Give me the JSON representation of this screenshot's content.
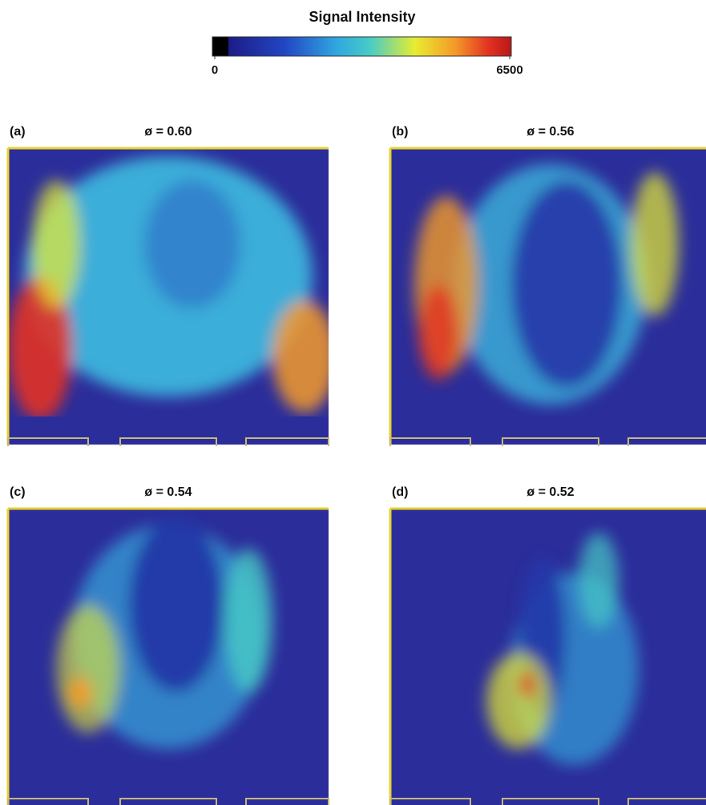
{
  "colorbar": {
    "title": "Signal Intensity",
    "lim": [
      0,
      6500
    ],
    "ticks": [
      0,
      6500
    ]
  },
  "panels": [
    {
      "label": "(a)",
      "title": "ø = 0.60"
    },
    {
      "label": "(b)",
      "title": "ø = 0.56"
    },
    {
      "label": "(c)",
      "title": "ø = 0.54"
    },
    {
      "label": "(d)",
      "title": "ø = 0.52"
    }
  ]
}
